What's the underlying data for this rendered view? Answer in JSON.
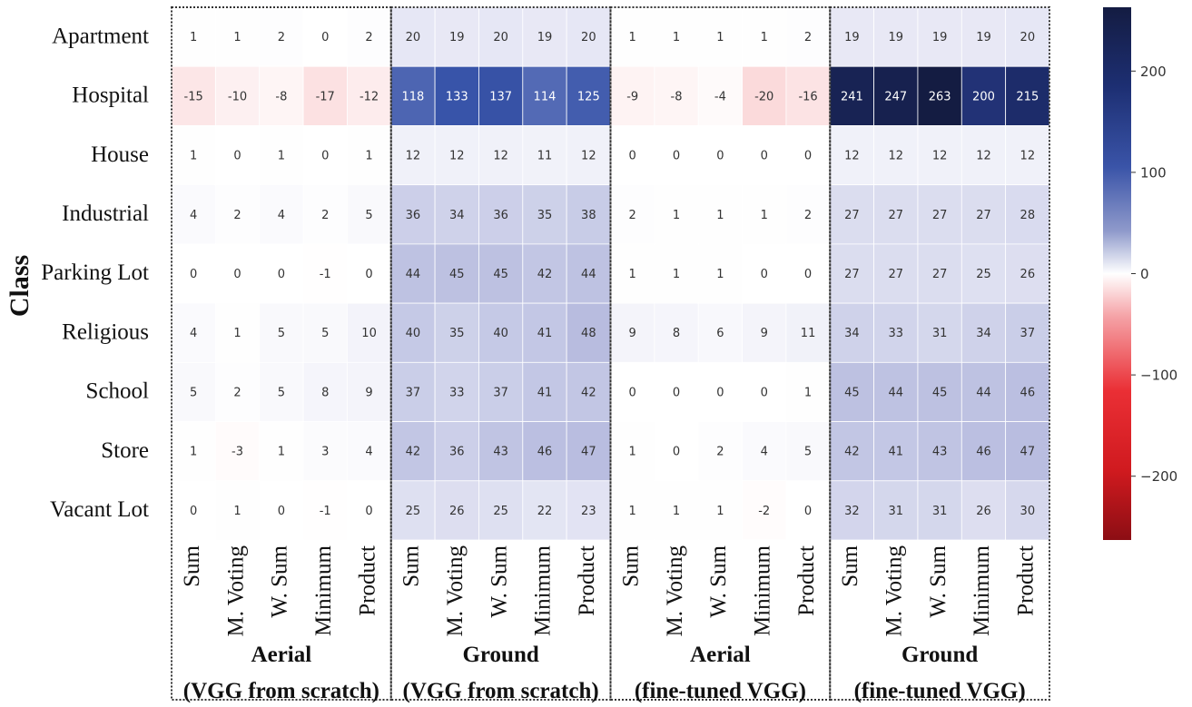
{
  "chart_data": {
    "type": "heatmap",
    "ylabel": "Class",
    "rows": [
      "Apartment",
      "Hospital",
      "House",
      "Industrial",
      "Parking Lot",
      "Religious",
      "School",
      "Store",
      "Vacant Lot"
    ],
    "columns": [
      "Sum",
      "M. Voting",
      "W. Sum",
      "Minimum",
      "Product",
      "Sum",
      "M. Voting",
      "W. Sum",
      "Minimum",
      "Product",
      "Sum",
      "M. Voting",
      "W. Sum",
      "Minimum",
      "Product",
      "Sum",
      "M. Voting",
      "W. Sum",
      "Minimum",
      "Product"
    ],
    "groups": [
      {
        "line1": "Aerial",
        "line2": "(VGG from scratch)"
      },
      {
        "line1": "Ground",
        "line2": "(VGG from scratch)"
      },
      {
        "line1": "Aerial",
        "line2": "(fine-tuned VGG)"
      },
      {
        "line1": "Ground",
        "line2": "(fine-tuned VGG)"
      }
    ],
    "values": [
      [
        1,
        1,
        2,
        0,
        2,
        20,
        19,
        20,
        19,
        20,
        1,
        1,
        1,
        1,
        2,
        19,
        19,
        19,
        19,
        20
      ],
      [
        -15,
        -10,
        -8,
        -17,
        -12,
        118,
        133,
        137,
        114,
        125,
        -9,
        -8,
        -4,
        -20,
        -16,
        241,
        247,
        263,
        200,
        215
      ],
      [
        1,
        0,
        1,
        0,
        1,
        12,
        12,
        12,
        11,
        12,
        0,
        0,
        0,
        0,
        0,
        12,
        12,
        12,
        12,
        12
      ],
      [
        4,
        2,
        4,
        2,
        5,
        36,
        34,
        36,
        35,
        38,
        2,
        1,
        1,
        1,
        2,
        27,
        27,
        27,
        27,
        28
      ],
      [
        0,
        0,
        0,
        -1,
        0,
        44,
        45,
        45,
        42,
        44,
        1,
        1,
        1,
        0,
        0,
        27,
        27,
        27,
        25,
        26
      ],
      [
        4,
        1,
        5,
        5,
        10,
        40,
        35,
        40,
        41,
        48,
        9,
        8,
        6,
        9,
        11,
        34,
        33,
        31,
        34,
        37
      ],
      [
        5,
        2,
        5,
        8,
        9,
        37,
        33,
        37,
        41,
        42,
        0,
        0,
        0,
        0,
        1,
        45,
        44,
        45,
        44,
        46
      ],
      [
        1,
        -3,
        1,
        3,
        4,
        42,
        36,
        43,
        46,
        47,
        1,
        0,
        2,
        4,
        5,
        42,
        41,
        43,
        46,
        47
      ],
      [
        0,
        1,
        0,
        -1,
        0,
        25,
        26,
        25,
        22,
        23,
        1,
        1,
        1,
        -2,
        0,
        32,
        31,
        31,
        26,
        30
      ]
    ],
    "colorbar": {
      "range": [
        -263,
        263
      ],
      "ticks": [
        200,
        100,
        0,
        -100,
        -200
      ],
      "tick_labels": [
        "200",
        "100",
        "0",
        "−100",
        "−200"
      ],
      "colormap": "seismic_r"
    },
    "grid": true,
    "colors": {
      "positive_max": "#141c42",
      "negative_max": "#8c0e14",
      "neutral": "#ffffff",
      "group_border": "#333333"
    }
  }
}
